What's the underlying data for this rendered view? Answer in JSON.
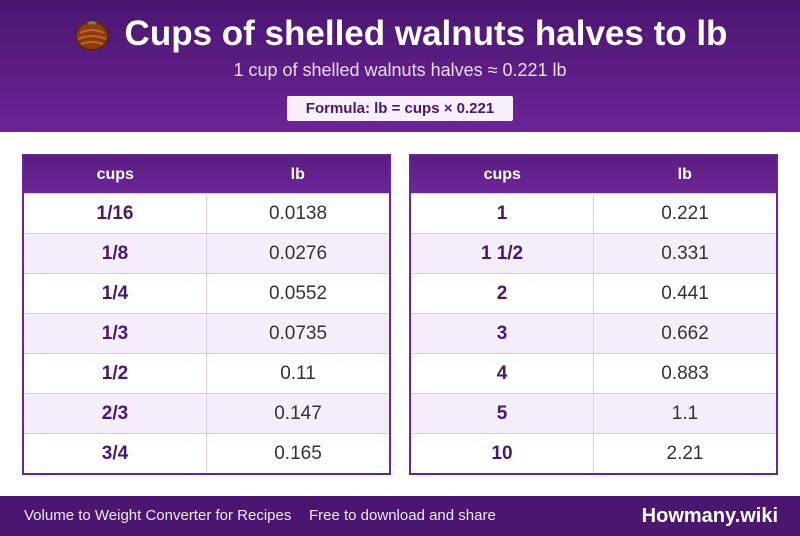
{
  "header": {
    "icon": "walnut-icon",
    "title": "Cups of shelled walnuts halves to lb",
    "subtitle": "1 cup of shelled walnuts halves ≈ 0.221 lb",
    "formula": "Formula: lb = cups × 0.221"
  },
  "tables": [
    {
      "headers": [
        "cups",
        "lb"
      ],
      "rows": [
        [
          "1/16",
          "0.0138"
        ],
        [
          "1/8",
          "0.0276"
        ],
        [
          "1/4",
          "0.0552"
        ],
        [
          "1/3",
          "0.0735"
        ],
        [
          "1/2",
          "0.11"
        ],
        [
          "2/3",
          "0.147"
        ],
        [
          "3/4",
          "0.165"
        ]
      ]
    },
    {
      "headers": [
        "cups",
        "lb"
      ],
      "rows": [
        [
          "1",
          "0.221"
        ],
        [
          "1 1/2",
          "0.331"
        ],
        [
          "2",
          "0.441"
        ],
        [
          "3",
          "0.662"
        ],
        [
          "4",
          "0.883"
        ],
        [
          "5",
          "1.1"
        ],
        [
          "10",
          "2.21"
        ]
      ]
    }
  ],
  "footer": {
    "left": "Volume to Weight Converter for Recipes",
    "middle": "Free to download and share",
    "brand": "Howmany.wiki"
  }
}
